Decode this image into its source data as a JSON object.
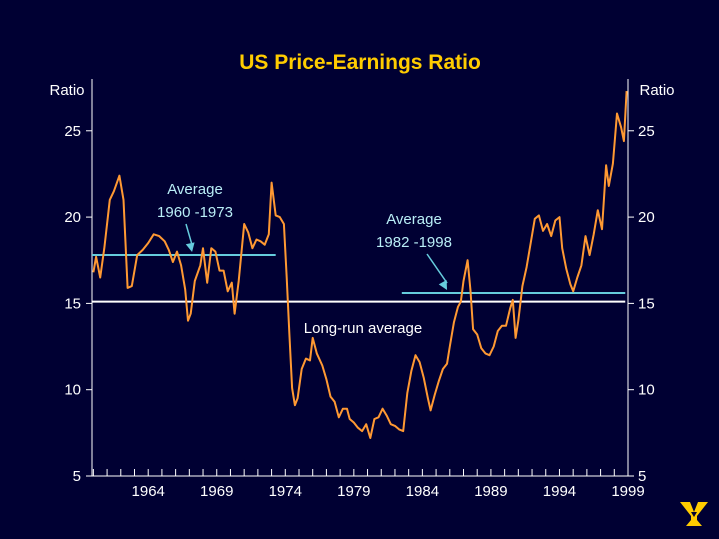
{
  "colors": {
    "background": "#000033",
    "title": "#ffcc00",
    "series": "#ff9933",
    "average_lines": "#66ccdd",
    "longrun_line": "#ffffff",
    "text": "#ffffff",
    "logo": "#ffcc00"
  },
  "chart_data": {
    "type": "line",
    "title": "US Price-Earnings Ratio",
    "ylabel_left": "Ratio",
    "ylabel_right": "Ratio",
    "ylim": [
      5,
      28
    ],
    "yticks": [
      5,
      10,
      15,
      20,
      25
    ],
    "xlim": [
      1959.9,
      1999.0
    ],
    "xticks": [
      1964,
      1969,
      1974,
      1979,
      1984,
      1989,
      1994,
      1999
    ],
    "xtick_labels": [
      "1964",
      "1969",
      "1974",
      "1979",
      "1984",
      "1989",
      "1994",
      "1999"
    ],
    "series": [
      {
        "name": "US P/E ratio",
        "points": [
          [
            1960.0,
            16.8
          ],
          [
            1960.2,
            17.7
          ],
          [
            1960.5,
            16.5
          ],
          [
            1960.8,
            18.2
          ],
          [
            1961.2,
            21.0
          ],
          [
            1961.5,
            21.5
          ],
          [
            1961.9,
            22.4
          ],
          [
            1962.2,
            21.0
          ],
          [
            1962.5,
            15.9
          ],
          [
            1962.8,
            16.0
          ],
          [
            1963.2,
            17.8
          ],
          [
            1963.6,
            18.1
          ],
          [
            1964.0,
            18.5
          ],
          [
            1964.4,
            19.0
          ],
          [
            1964.8,
            18.9
          ],
          [
            1965.2,
            18.6
          ],
          [
            1965.5,
            18.1
          ],
          [
            1965.8,
            17.4
          ],
          [
            1966.1,
            18.0
          ],
          [
            1966.4,
            17.2
          ],
          [
            1966.7,
            15.8
          ],
          [
            1966.9,
            14.0
          ],
          [
            1967.1,
            14.4
          ],
          [
            1967.4,
            16.3
          ],
          [
            1967.8,
            17.2
          ],
          [
            1968.0,
            18.2
          ],
          [
            1968.3,
            16.2
          ],
          [
            1968.6,
            18.2
          ],
          [
            1968.9,
            18.0
          ],
          [
            1969.2,
            16.9
          ],
          [
            1969.5,
            16.9
          ],
          [
            1969.8,
            15.7
          ],
          [
            1970.1,
            16.2
          ],
          [
            1970.3,
            14.4
          ],
          [
            1970.6,
            16.3
          ],
          [
            1971.0,
            19.6
          ],
          [
            1971.3,
            19.1
          ],
          [
            1971.6,
            18.2
          ],
          [
            1971.9,
            18.7
          ],
          [
            1972.2,
            18.6
          ],
          [
            1972.5,
            18.4
          ],
          [
            1972.8,
            19.0
          ],
          [
            1973.0,
            22.0
          ],
          [
            1973.3,
            20.1
          ],
          [
            1973.6,
            20.0
          ],
          [
            1973.9,
            19.6
          ],
          [
            1974.1,
            16.5
          ],
          [
            1974.3,
            13.2
          ],
          [
            1974.5,
            10.1
          ],
          [
            1974.7,
            9.1
          ],
          [
            1974.9,
            9.5
          ],
          [
            1975.2,
            11.2
          ],
          [
            1975.5,
            11.8
          ],
          [
            1975.8,
            11.7
          ],
          [
            1976.0,
            13.0
          ],
          [
            1976.3,
            12.1
          ],
          [
            1976.7,
            11.4
          ],
          [
            1977.0,
            10.6
          ],
          [
            1977.3,
            9.6
          ],
          [
            1977.6,
            9.3
          ],
          [
            1977.9,
            8.4
          ],
          [
            1978.2,
            8.9
          ],
          [
            1978.5,
            8.9
          ],
          [
            1978.7,
            8.3
          ],
          [
            1979.0,
            8.1
          ],
          [
            1979.3,
            7.8
          ],
          [
            1979.6,
            7.6
          ],
          [
            1979.9,
            8.0
          ],
          [
            1980.2,
            7.2
          ],
          [
            1980.5,
            8.3
          ],
          [
            1980.8,
            8.4
          ],
          [
            1981.1,
            8.9
          ],
          [
            1981.4,
            8.5
          ],
          [
            1981.7,
            8.0
          ],
          [
            1982.0,
            7.9
          ],
          [
            1982.3,
            7.7
          ],
          [
            1982.6,
            7.6
          ],
          [
            1982.9,
            9.8
          ],
          [
            1983.2,
            11.1
          ],
          [
            1983.5,
            12.0
          ],
          [
            1983.8,
            11.6
          ],
          [
            1984.1,
            10.7
          ],
          [
            1984.4,
            9.5
          ],
          [
            1984.6,
            8.8
          ],
          [
            1984.9,
            9.7
          ],
          [
            1985.2,
            10.5
          ],
          [
            1985.5,
            11.2
          ],
          [
            1985.8,
            11.5
          ],
          [
            1986.0,
            12.5
          ],
          [
            1986.3,
            13.9
          ],
          [
            1986.6,
            14.8
          ],
          [
            1986.8,
            15.1
          ],
          [
            1987.0,
            16.3
          ],
          [
            1987.3,
            17.5
          ],
          [
            1987.5,
            15.8
          ],
          [
            1987.7,
            13.5
          ],
          [
            1988.0,
            13.2
          ],
          [
            1988.3,
            12.4
          ],
          [
            1988.6,
            12.1
          ],
          [
            1988.9,
            12.0
          ],
          [
            1989.2,
            12.5
          ],
          [
            1989.5,
            13.4
          ],
          [
            1989.8,
            13.7
          ],
          [
            1990.1,
            13.7
          ],
          [
            1990.4,
            14.7
          ],
          [
            1990.6,
            15.2
          ],
          [
            1990.8,
            13.0
          ],
          [
            1991.0,
            14.0
          ],
          [
            1991.3,
            16.0
          ],
          [
            1991.6,
            17.1
          ],
          [
            1991.9,
            18.5
          ],
          [
            1992.2,
            19.9
          ],
          [
            1992.5,
            20.1
          ],
          [
            1992.8,
            19.2
          ],
          [
            1993.1,
            19.6
          ],
          [
            1993.4,
            18.9
          ],
          [
            1993.7,
            19.8
          ],
          [
            1994.0,
            20.0
          ],
          [
            1994.2,
            18.2
          ],
          [
            1994.5,
            17.0
          ],
          [
            1994.8,
            16.1
          ],
          [
            1995.0,
            15.7
          ],
          [
            1995.3,
            16.5
          ],
          [
            1995.6,
            17.2
          ],
          [
            1995.9,
            18.9
          ],
          [
            1996.2,
            17.8
          ],
          [
            1996.5,
            19.0
          ],
          [
            1996.8,
            20.4
          ],
          [
            1997.1,
            19.3
          ],
          [
            1997.4,
            23.0
          ],
          [
            1997.6,
            21.8
          ],
          [
            1997.9,
            23.1
          ],
          [
            1998.2,
            26.0
          ],
          [
            1998.5,
            25.2
          ],
          [
            1998.7,
            24.4
          ],
          [
            1998.9,
            27.3
          ]
        ]
      }
    ],
    "reference_lines": [
      {
        "name": "average-1960-1973",
        "x0": 1959.9,
        "x1": 1973.3,
        "y": 17.8
      },
      {
        "name": "average-1982-1998",
        "x0": 1982.5,
        "x1": 1998.8,
        "y": 15.6
      },
      {
        "name": "long-run-average",
        "x0": 1959.9,
        "x1": 1998.8,
        "y": 15.1
      }
    ],
    "annotations": [
      {
        "name": "average-1960-1973",
        "lines": [
          "Average",
          "1960 -1973"
        ],
        "arrow_to": [
          1967.2,
          17.8
        ]
      },
      {
        "name": "average-1982-1998",
        "lines": [
          "Average",
          "1982 -1998"
        ],
        "arrow_to": [
          1985.8,
          15.6
        ]
      },
      {
        "name": "long-run-average",
        "lines": [
          "Long-run average"
        ]
      }
    ]
  }
}
